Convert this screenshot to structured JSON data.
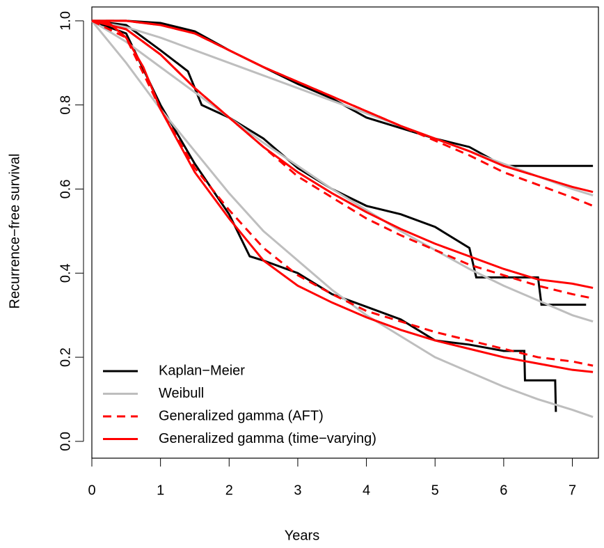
{
  "chart_data": {
    "type": "line",
    "xlabel": "Years",
    "ylabel": "Recurrence−free survival",
    "xlim": [
      0,
      7.38
    ],
    "ylim": [
      -0.04,
      1.033
    ],
    "xticks": [
      0,
      1,
      2,
      3,
      4,
      5,
      6,
      7
    ],
    "yticks": [
      {
        "value": 0,
        "label": "0.0"
      },
      {
        "value": 0.2,
        "label": "0.2"
      },
      {
        "value": 0.4,
        "label": "0.4"
      },
      {
        "value": 0.6,
        "label": "0.6"
      },
      {
        "value": 0.8,
        "label": "0.8"
      },
      {
        "value": 1,
        "label": "1.0"
      }
    ],
    "legend": "bottom-left",
    "series": [
      {
        "name": "Kaplan−Meier",
        "color": "#000000",
        "dashed": false,
        "curves": [
          {
            "x": [
              0,
              0.5,
              1,
              1.5,
              2,
              2.5,
              3,
              3.5,
              4,
              4.5,
              5,
              5.5,
              6,
              7.3
            ],
            "values": [
              1,
              1,
              0.995,
              0.975,
              0.93,
              0.89,
              0.85,
              0.815,
              0.77,
              0.745,
              0.72,
              0.7,
              0.655,
              0.655
            ]
          },
          {
            "x": [
              0,
              0.5,
              1,
              1.4,
              1.6,
              2,
              2.5,
              3,
              3.5,
              4,
              4.5,
              5,
              5.5,
              5.6,
              6.5,
              6.55,
              7.2
            ],
            "values": [
              1,
              0.99,
              0.93,
              0.88,
              0.8,
              0.77,
              0.72,
              0.65,
              0.6,
              0.56,
              0.54,
              0.51,
              0.46,
              0.39,
              0.39,
              0.325,
              0.325
            ]
          },
          {
            "x": [
              0,
              0.5,
              1,
              1.5,
              2,
              2.3,
              2.5,
              3,
              3.5,
              4,
              4.5,
              5,
              5.5,
              6,
              6.3,
              6.31,
              6.75,
              6.76
            ],
            "values": [
              1,
              0.97,
              0.8,
              0.66,
              0.54,
              0.44,
              0.43,
              0.4,
              0.35,
              0.32,
              0.29,
              0.24,
              0.23,
              0.215,
              0.215,
              0.145,
              0.145,
              0.07
            ]
          }
        ]
      },
      {
        "name": "Weibull",
        "color": "#bebebe",
        "dashed": false,
        "curves": [
          {
            "x": [
              0,
              0.5,
              1,
              1.5,
              2,
              2.5,
              3,
              3.5,
              4,
              4.5,
              5,
              5.5,
              6,
              6.5,
              7,
              7.3
            ],
            "values": [
              1,
              0.985,
              0.96,
              0.93,
              0.9,
              0.87,
              0.84,
              0.81,
              0.78,
              0.75,
              0.72,
              0.69,
              0.66,
              0.63,
              0.6,
              0.585
            ]
          },
          {
            "x": [
              0,
              0.5,
              1,
              1.5,
              2,
              2.5,
              3,
              3.5,
              4,
              4.5,
              5,
              5.5,
              6,
              6.5,
              7,
              7.3
            ],
            "values": [
              1,
              0.95,
              0.89,
              0.83,
              0.77,
              0.71,
              0.655,
              0.6,
              0.55,
              0.5,
              0.455,
              0.41,
              0.37,
              0.335,
              0.3,
              0.285
            ]
          },
          {
            "x": [
              0,
              0.5,
              1,
              1.5,
              2,
              2.5,
              3,
              3.5,
              4,
              4.5,
              5,
              5.5,
              6,
              6.5,
              7,
              7.3
            ],
            "values": [
              1,
              0.9,
              0.79,
              0.69,
              0.59,
              0.5,
              0.43,
              0.36,
              0.3,
              0.25,
              0.2,
              0.165,
              0.13,
              0.1,
              0.075,
              0.058
            ]
          }
        ]
      },
      {
        "name": "Generalized gamma (AFT)",
        "color": "#ff0000",
        "dashed": true,
        "curves": [
          {
            "x": [
              0,
              0.5,
              1,
              1.5,
              2,
              2.5,
              3,
              3.5,
              4,
              4.5,
              5,
              5.5,
              6,
              6.5,
              7,
              7.3
            ],
            "values": [
              1,
              1,
              0.99,
              0.97,
              0.93,
              0.89,
              0.855,
              0.82,
              0.785,
              0.75,
              0.715,
              0.68,
              0.64,
              0.61,
              0.58,
              0.56
            ]
          },
          {
            "x": [
              0,
              0.5,
              1,
              1.5,
              2,
              2.5,
              3,
              3.5,
              4,
              4.5,
              5,
              5.5,
              6,
              6.5,
              7,
              7.3
            ],
            "values": [
              1,
              0.98,
              0.92,
              0.84,
              0.77,
              0.7,
              0.63,
              0.58,
              0.53,
              0.49,
              0.455,
              0.42,
              0.395,
              0.37,
              0.35,
              0.34
            ]
          },
          {
            "x": [
              0,
              0.5,
              1,
              1.5,
              2,
              2.5,
              3,
              3.5,
              4,
              4.5,
              5,
              5.5,
              6,
              6.5,
              7,
              7.3
            ],
            "values": [
              1,
              0.96,
              0.79,
              0.65,
              0.55,
              0.46,
              0.395,
              0.35,
              0.31,
              0.285,
              0.26,
              0.24,
              0.22,
              0.2,
              0.19,
              0.18
            ]
          }
        ]
      },
      {
        "name": "Generalized gamma (time−varying)",
        "color": "#ff0000",
        "dashed": false,
        "curves": [
          {
            "x": [
              0,
              0.5,
              1,
              1.5,
              2,
              2.5,
              3,
              3.5,
              4,
              4.5,
              5,
              5.5,
              6,
              6.5,
              7,
              7.3
            ],
            "values": [
              1,
              1,
              0.99,
              0.97,
              0.93,
              0.89,
              0.855,
              0.82,
              0.785,
              0.75,
              0.72,
              0.69,
              0.655,
              0.63,
              0.605,
              0.593
            ]
          },
          {
            "x": [
              0,
              0.5,
              1,
              1.5,
              2,
              2.5,
              3,
              3.5,
              4,
              4.5,
              5,
              5.5,
              6,
              6.5,
              7,
              7.3
            ],
            "values": [
              1,
              0.98,
              0.92,
              0.84,
              0.77,
              0.7,
              0.64,
              0.59,
              0.545,
              0.505,
              0.47,
              0.44,
              0.41,
              0.385,
              0.375,
              0.365
            ]
          },
          {
            "x": [
              0,
              0.25,
              0.5,
              0.75,
              1,
              1.5,
              2,
              2.5,
              3,
              3.5,
              4,
              4.5,
              5,
              5.5,
              6,
              6.5,
              7,
              7.3
            ],
            "values": [
              1,
              0.995,
              0.96,
              0.89,
              0.79,
              0.64,
              0.53,
              0.43,
              0.37,
              0.33,
              0.295,
              0.265,
              0.24,
              0.22,
              0.2,
              0.185,
              0.17,
              0.165
            ]
          }
        ]
      }
    ]
  }
}
